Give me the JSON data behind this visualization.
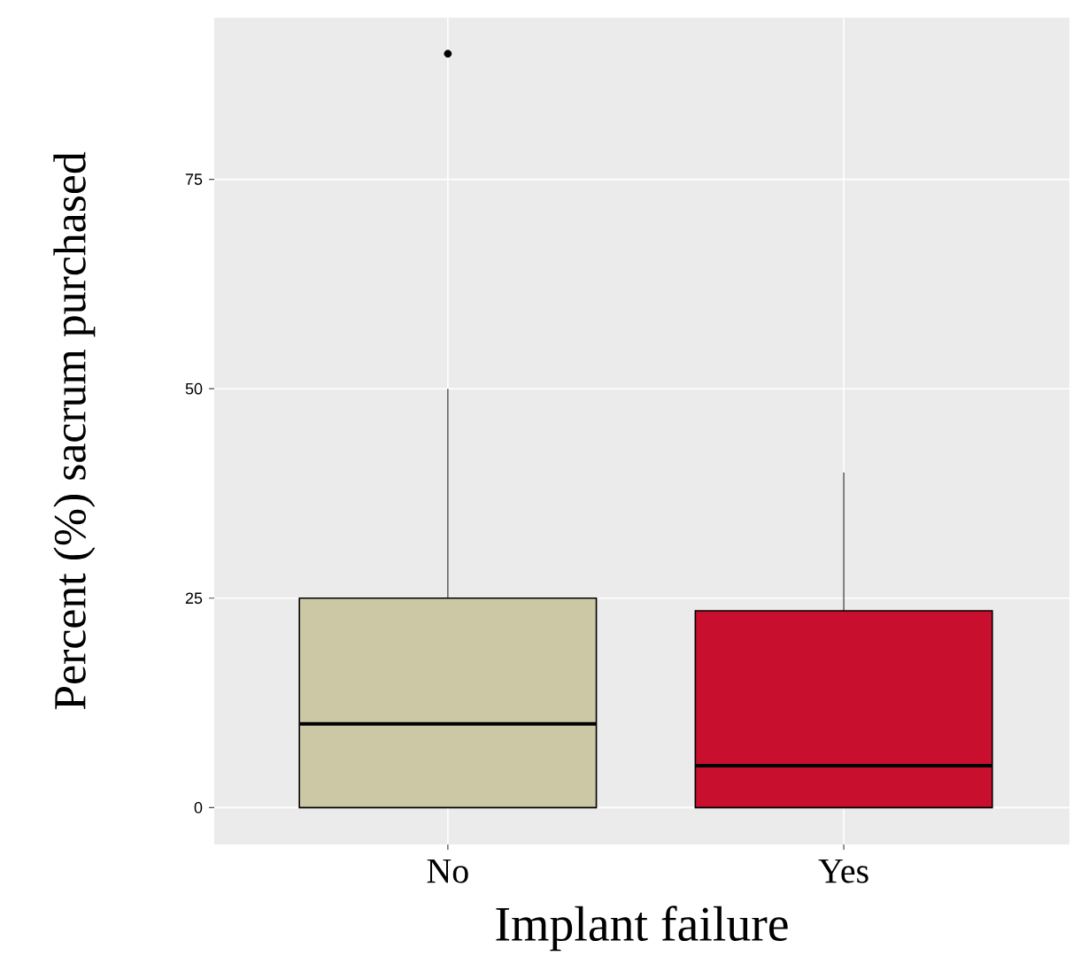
{
  "chart_data": {
    "type": "box",
    "xlabel": "Implant failure",
    "ylabel": "Percent (%)  sacrum purchased",
    "categories": [
      "No",
      "Yes"
    ],
    "boxes": [
      {
        "low": 0,
        "q1": 0,
        "median": 10,
        "q3": 25,
        "high": 50,
        "outliers": [
          90
        ]
      },
      {
        "low": 0,
        "q1": 0,
        "median": 5,
        "q3": 23.5,
        "high": 40
      }
    ],
    "colors": [
      "#ccc8a6",
      "#c8102e"
    ],
    "ylim": [
      -4.4,
      94.3
    ],
    "yticks": [
      0,
      25,
      50,
      75
    ],
    "grid": true
  }
}
